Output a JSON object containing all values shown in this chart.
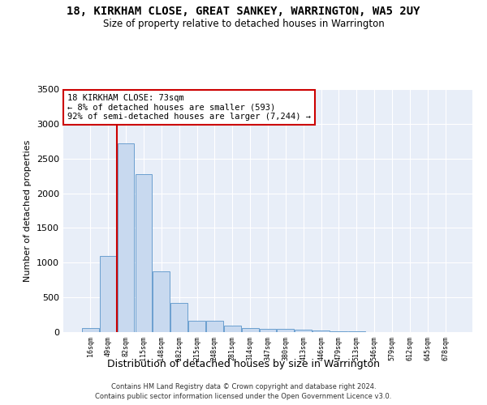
{
  "title": "18, KIRKHAM CLOSE, GREAT SANKEY, WARRINGTON, WA5 2UY",
  "subtitle": "Size of property relative to detached houses in Warrington",
  "xlabel": "Distribution of detached houses by size in Warrington",
  "ylabel": "Number of detached properties",
  "bar_labels": [
    "16sqm",
    "49sqm",
    "82sqm",
    "115sqm",
    "148sqm",
    "182sqm",
    "215sqm",
    "248sqm",
    "281sqm",
    "314sqm",
    "347sqm",
    "380sqm",
    "413sqm",
    "446sqm",
    "479sqm",
    "513sqm",
    "546sqm",
    "579sqm",
    "612sqm",
    "645sqm",
    "678sqm"
  ],
  "bar_values": [
    55,
    1100,
    2720,
    2280,
    870,
    420,
    165,
    165,
    90,
    55,
    45,
    45,
    30,
    25,
    15,
    10,
    5,
    5,
    3,
    2,
    1
  ],
  "bar_color": "#c8d9ef",
  "bar_edge_color": "#6b9fcf",
  "annotation_text_line1": "18 KIRKHAM CLOSE: 73sqm",
  "annotation_text_line2": "← 8% of detached houses are smaller (593)",
  "annotation_text_line3": "92% of semi-detached houses are larger (7,244) →",
  "annotation_box_facecolor": "#ffffff",
  "annotation_box_edgecolor": "#cc0000",
  "vline_color": "#cc0000",
  "vline_x": 1.5,
  "ylim": [
    0,
    3500
  ],
  "yticks": [
    0,
    500,
    1000,
    1500,
    2000,
    2500,
    3000,
    3500
  ],
  "background_color": "#e8eef8",
  "grid_color": "#ffffff",
  "footer_line1": "Contains HM Land Registry data © Crown copyright and database right 2024.",
  "footer_line2": "Contains public sector information licensed under the Open Government Licence v3.0."
}
